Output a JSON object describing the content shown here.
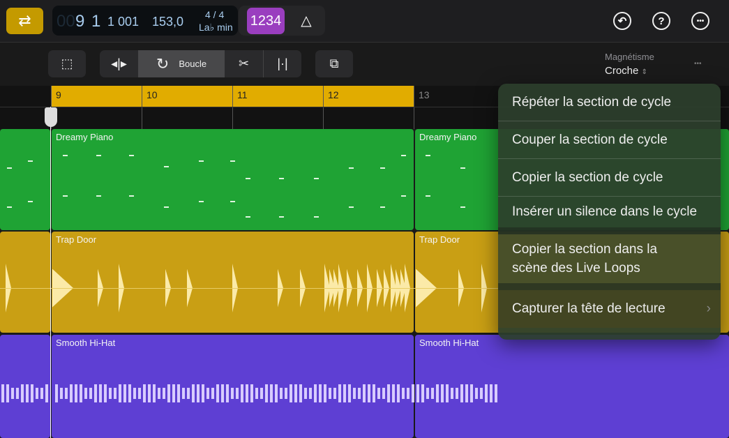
{
  "transport": {
    "position_dim": "00",
    "bar": "9",
    "beat": "1",
    "tick": "1 001",
    "tempo": "153,0",
    "signature": "4 / 4",
    "key": "La♭ min",
    "count_in": "1234"
  },
  "toolbar": {
    "loop_label": "Boucle",
    "snap_label": "Magnétisme",
    "snap_value": "Croche",
    "more": "•••"
  },
  "ruler": {
    "bars": [
      "9",
      "10",
      "11",
      "12",
      "13"
    ]
  },
  "tracks": [
    {
      "name": "Dreamy Piano",
      "color": "#1fa334"
    },
    {
      "name": "Trap Door",
      "color": "#c99f14"
    },
    {
      "name": "Smooth Hi-Hat",
      "color": "#5e3fd3"
    }
  ],
  "menu": {
    "items": [
      "Répéter la section de cycle",
      "Couper la section de cycle",
      "Copier la section de cycle",
      "Insérer un silence dans le cycle",
      "Copier la section dans la scène des Live Loops",
      "Capturer la tête de lecture"
    ],
    "submenu_arrow": "›"
  }
}
